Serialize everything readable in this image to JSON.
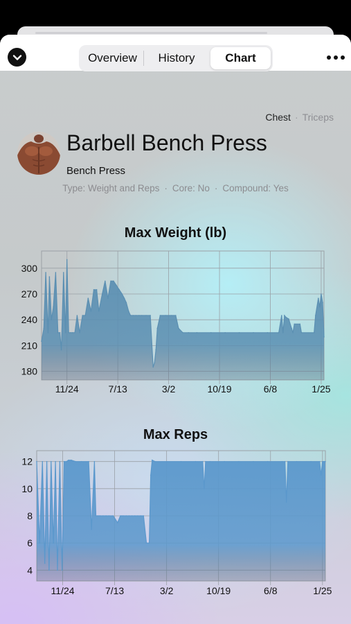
{
  "header": {
    "tabs": [
      {
        "label": "Overview",
        "active": false
      },
      {
        "label": "History",
        "active": false
      },
      {
        "label": "Chart",
        "active": true
      }
    ],
    "icons": {
      "dismiss": "chevron-down-icon",
      "more": "more-icon"
    }
  },
  "exercise": {
    "name": "Barbell Bench Press",
    "subtitle": "Bench Press",
    "primary_muscle": "Chest",
    "secondary_muscle": "Triceps",
    "meta": {
      "type": "Type: Weight and Reps",
      "core": "Core: No",
      "compound": "Compound: Yes"
    }
  },
  "chart_data": [
    {
      "type": "area",
      "title": "Max Weight (lb)",
      "xlabel": "",
      "ylabel": "",
      "ylim": [
        170,
        320
      ],
      "xlim": [
        0,
        100
      ],
      "yticks": [
        180,
        210,
        240,
        270,
        300
      ],
      "xticks": [
        {
          "x": 9,
          "label": "11/24"
        },
        {
          "x": 27,
          "label": "7/13"
        },
        {
          "x": 45,
          "label": "3/2"
        },
        {
          "x": 63,
          "label": "10/19"
        },
        {
          "x": 81,
          "label": "6/8"
        },
        {
          "x": 99,
          "label": "1/25"
        }
      ],
      "grid": true,
      "color": "#5b8fb2",
      "x": [
        0,
        0.8,
        1.5,
        2.3,
        2.8,
        3.5,
        4.2,
        5,
        5.8,
        6.5,
        7,
        7.8,
        8.5,
        9,
        9.6,
        10.3,
        11,
        11.8,
        12.6,
        13.5,
        14.5,
        15.5,
        16.5,
        17.5,
        18.5,
        19.5,
        20.3,
        21.5,
        22.5,
        23.5,
        24.5,
        25.5,
        26.5,
        27.5,
        28.5,
        29.3,
        30,
        30.8,
        31.5,
        32.5,
        33.5,
        34.5,
        35.5,
        37,
        38.5,
        39.5,
        40,
        40.5,
        41,
        42,
        44,
        46,
        47.5,
        48.5,
        50,
        52,
        55,
        60,
        65,
        70,
        75,
        80,
        84,
        85,
        85.5,
        86,
        86.5,
        87.5,
        88.5,
        89,
        89.5,
        91.5,
        92,
        96.5,
        97,
        98,
        98.5,
        99,
        99.5,
        100
      ],
      "values": [
        215,
        230,
        295,
        225,
        290,
        240,
        255,
        295,
        225,
        225,
        205,
        295,
        225,
        310,
        225,
        225,
        225,
        225,
        245,
        225,
        245,
        245,
        265,
        250,
        275,
        275,
        250,
        270,
        285,
        265,
        285,
        285,
        280,
        275,
        270,
        265,
        260,
        250,
        245,
        245,
        245,
        245,
        245,
        245,
        245,
        185,
        190,
        205,
        230,
        245,
        245,
        245,
        245,
        230,
        225,
        225,
        225,
        225,
        225,
        225,
        225,
        225,
        225,
        245,
        225,
        245,
        243,
        241,
        230,
        225,
        235,
        235,
        225,
        225,
        245,
        265,
        255,
        270,
        260,
        220
      ]
    },
    {
      "type": "area",
      "title": "Max Reps",
      "xlabel": "",
      "ylabel": "",
      "ylim": [
        3.2,
        12.8
      ],
      "xlim": [
        0,
        100
      ],
      "yticks": [
        4,
        6,
        8,
        10,
        12
      ],
      "xticks": [
        {
          "x": 9,
          "label": "11/24"
        },
        {
          "x": 27,
          "label": "7/13"
        },
        {
          "x": 45,
          "label": "3/2"
        },
        {
          "x": 63,
          "label": "10/19"
        },
        {
          "x": 81,
          "label": "6/8"
        },
        {
          "x": 99,
          "label": "1/25"
        }
      ],
      "grid": true,
      "color": "#5b98cc",
      "x": [
        0,
        1,
        2,
        2.8,
        3.5,
        4.3,
        5,
        5.8,
        6.5,
        7.2,
        8,
        8.8,
        9.5,
        10.3,
        11,
        12,
        13.5,
        15.5,
        18,
        19,
        20,
        20.5,
        21,
        21.5,
        22,
        23,
        24,
        25,
        26.5,
        28,
        29,
        29.5,
        30,
        31,
        32,
        33,
        34,
        35,
        36,
        37,
        38,
        39,
        39.5,
        40,
        41,
        45,
        50,
        55,
        57.5,
        58,
        58.5,
        60,
        65,
        70,
        75,
        80,
        85,
        86,
        86.5,
        87,
        90,
        95,
        98,
        98.5,
        99,
        99.5,
        100
      ],
      "values": [
        12,
        6,
        12,
        4.5,
        12,
        4,
        12,
        6,
        12,
        4,
        12,
        4,
        12,
        12,
        12.1,
        12.1,
        12,
        12,
        12,
        7,
        12,
        8,
        8,
        8,
        8,
        8,
        8,
        8,
        8,
        7.5,
        8,
        8,
        8,
        8,
        8,
        8,
        8,
        8,
        8,
        8,
        6,
        6,
        11,
        12.1,
        12,
        12,
        12,
        12,
        12,
        10,
        12,
        12,
        12,
        12,
        12,
        12,
        12,
        12,
        9,
        12,
        12,
        12,
        12,
        11,
        12,
        12,
        12
      ]
    }
  ]
}
